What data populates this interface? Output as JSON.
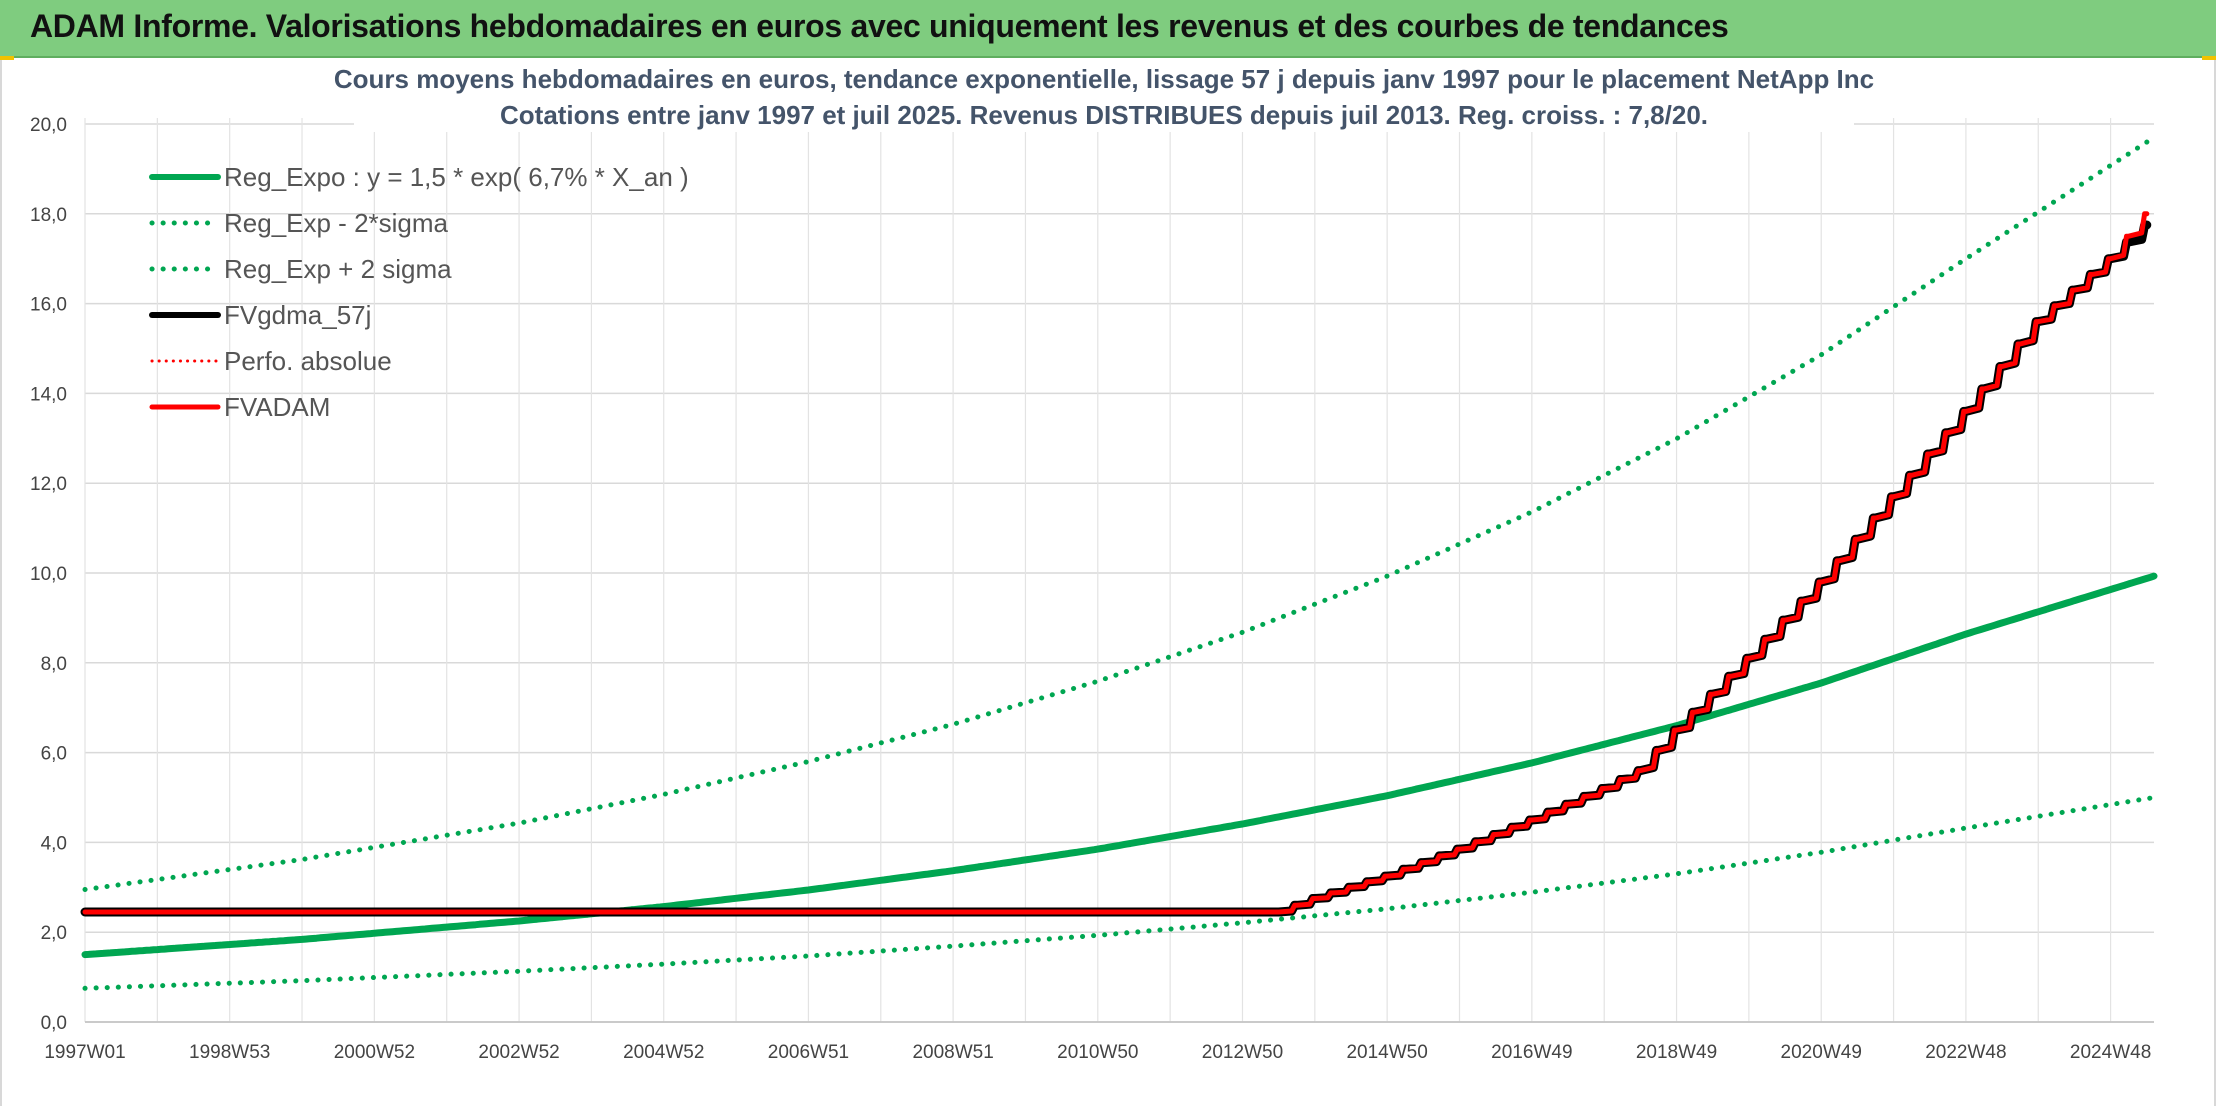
{
  "banner": {
    "title": "ADAM Informe. Valorisations hebdomadaires en euros avec uniquement les revenus et des courbes de tendances",
    "background": "#7fcc7f"
  },
  "chart_data": {
    "type": "line",
    "title": "Cours moyens hebdomadaires en euros, tendance exponentielle, lissage 57 j depuis janv 1997 pour le placement NetApp Inc",
    "subtitle": "Cotations entre janv 1997 et juil 2025. Revenus DISTRIBUES depuis juil 2013. Reg. croiss. : 7,8/20.",
    "xlabel": "",
    "ylabel": "",
    "ylim": [
      0,
      20
    ],
    "yticks": [
      "0,0",
      "2,0",
      "4,0",
      "6,0",
      "8,0",
      "10,0",
      "12,0",
      "14,0",
      "16,0",
      "18,0",
      "20,0"
    ],
    "xlim": [
      1997.0,
      2025.6
    ],
    "xtick_labels": [
      "1997W01",
      "1998W53",
      "2000W52",
      "2002W52",
      "2004W52",
      "2006W51",
      "2008W51",
      "2010W50",
      "2012W50",
      "2014W50",
      "2016W49",
      "2018W49",
      "2020W49",
      "2022W48",
      "2024W48"
    ],
    "xtick_positions": [
      1997.0,
      1999.0,
      2001.0,
      2003.0,
      2005.0,
      2007.0,
      2009.0,
      2011.0,
      2013.0,
      2015.0,
      2017.0,
      2019.0,
      2021.0,
      2023.0,
      2025.0
    ],
    "grid": true,
    "legend_position": "top-left",
    "series": [
      {
        "name": "Reg_Expo : y = 1,5 * exp( 6,7% *  X_an )",
        "color": "#00a651",
        "style": "solid",
        "x": [
          1997.0,
          2000.0,
          2003.0,
          2005.0,
          2007.0,
          2009.0,
          2011.0,
          2013.0,
          2015.0,
          2017.0,
          2019.0,
          2021.0,
          2023.0,
          2025.6
        ],
        "y": [
          1.5,
          1.84,
          2.25,
          2.57,
          2.94,
          3.37,
          3.85,
          4.41,
          5.04,
          5.77,
          6.6,
          7.55,
          8.64,
          9.93
        ]
      },
      {
        "name": "Reg_Exp - 2*sigma",
        "color": "#00a651",
        "style": "dotted",
        "x": [
          1997.0,
          2000.0,
          2003.0,
          2005.0,
          2007.0,
          2009.0,
          2011.0,
          2013.0,
          2015.0,
          2017.0,
          2019.0,
          2021.0,
          2023.0,
          2025.6
        ],
        "y": [
          0.75,
          0.92,
          1.13,
          1.29,
          1.47,
          1.69,
          1.93,
          2.21,
          2.52,
          2.89,
          3.3,
          3.78,
          4.32,
          5.0
        ]
      },
      {
        "name": "Reg_Exp + 2 sigma",
        "color": "#00a651",
        "style": "dotted",
        "x": [
          1997.0,
          2000.0,
          2003.0,
          2005.0,
          2007.0,
          2009.0,
          2011.0,
          2013.0,
          2015.0,
          2017.0,
          2019.0,
          2021.0,
          2023.0,
          2025.6
        ],
        "y": [
          2.95,
          3.62,
          4.43,
          5.07,
          5.8,
          6.63,
          7.59,
          8.68,
          9.93,
          11.36,
          12.99,
          14.86,
          17.0,
          19.7
        ]
      },
      {
        "name": "FVgdma_57j",
        "color": "#000000",
        "style": "solid",
        "x": [
          1997.0,
          2013.5,
          2014.0,
          2015.0,
          2016.0,
          2017.0,
          2018.0,
          2018.5,
          2019.0,
          2020.0,
          2021.0,
          2022.0,
          2023.0,
          2024.0,
          2025.0,
          2025.6
        ],
        "y": [
          2.45,
          2.45,
          2.75,
          3.25,
          3.85,
          4.5,
          5.2,
          5.6,
          6.5,
          8.1,
          9.8,
          11.7,
          13.6,
          15.6,
          17.0,
          17.9
        ]
      },
      {
        "name": "Perfo. absolue",
        "color": "#ff0000",
        "style": "dotted",
        "x": [],
        "y": []
      },
      {
        "name": "FVADAM",
        "color": "#ff0000",
        "style": "solid",
        "x": [
          1997.0,
          2013.5,
          2014.0,
          2015.0,
          2016.0,
          2017.0,
          2018.0,
          2018.5,
          2019.0,
          2020.0,
          2021.0,
          2022.0,
          2023.0,
          2024.0,
          2025.0,
          2025.6
        ],
        "y": [
          2.45,
          2.45,
          2.75,
          3.25,
          3.85,
          4.5,
          5.2,
          5.6,
          6.5,
          8.1,
          9.8,
          11.7,
          13.6,
          15.6,
          17.0,
          18.2
        ]
      }
    ]
  }
}
